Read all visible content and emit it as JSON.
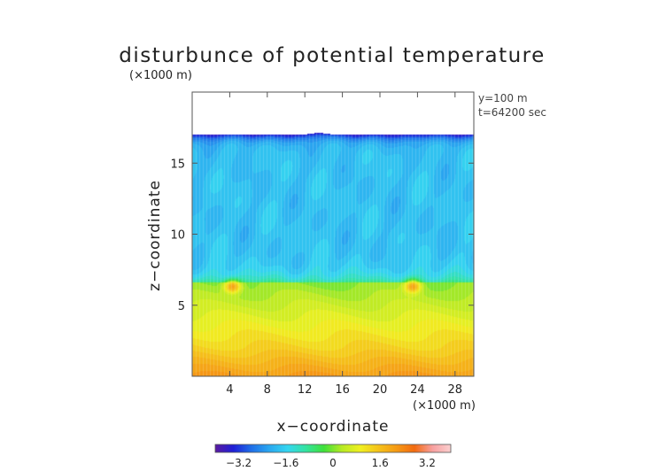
{
  "chart_data": {
    "type": "heatmap",
    "title": "disturbunce of potential temperature",
    "z_scale_label": "(×1000 m)",
    "x_scale_label": "(×1000 m)",
    "xlabel": "x−coordinate",
    "ylabel": "z−coordinate",
    "annotations": [
      "y=100 m",
      "t=64200 sec"
    ],
    "x_range": [
      0,
      30
    ],
    "z_range": [
      0,
      20
    ],
    "x_ticks": [
      4,
      8,
      12,
      16,
      20,
      24,
      28
    ],
    "z_ticks": [
      5,
      10,
      15
    ],
    "colorbar": {
      "range": [
        -4.0,
        4.0
      ],
      "ticks": [
        "−3.2",
        "−1.6",
        "0",
        "1.6",
        "3.2"
      ],
      "tick_values": [
        -3.2,
        -1.6,
        0,
        1.6,
        3.2
      ],
      "colors": [
        "#5a1aa0",
        "#1f1fd6",
        "#1f6fe8",
        "#2aa8f0",
        "#34d6f0",
        "#33e3a0",
        "#3fe03a",
        "#b7ea23",
        "#f0f020",
        "#f5c21a",
        "#f59a14",
        "#f26a10",
        "#f7a0a0",
        "#fbd0d0"
      ]
    },
    "data_top_z": 17.0,
    "top_boundary_value": -3.6,
    "features": [
      {
        "name": "warm-blob-left",
        "x": 4.3,
        "z": 6.3,
        "value": 2.2
      },
      {
        "name": "warm-blob-right",
        "x": 23.5,
        "z": 6.3,
        "value": 2.2
      }
    ]
  }
}
